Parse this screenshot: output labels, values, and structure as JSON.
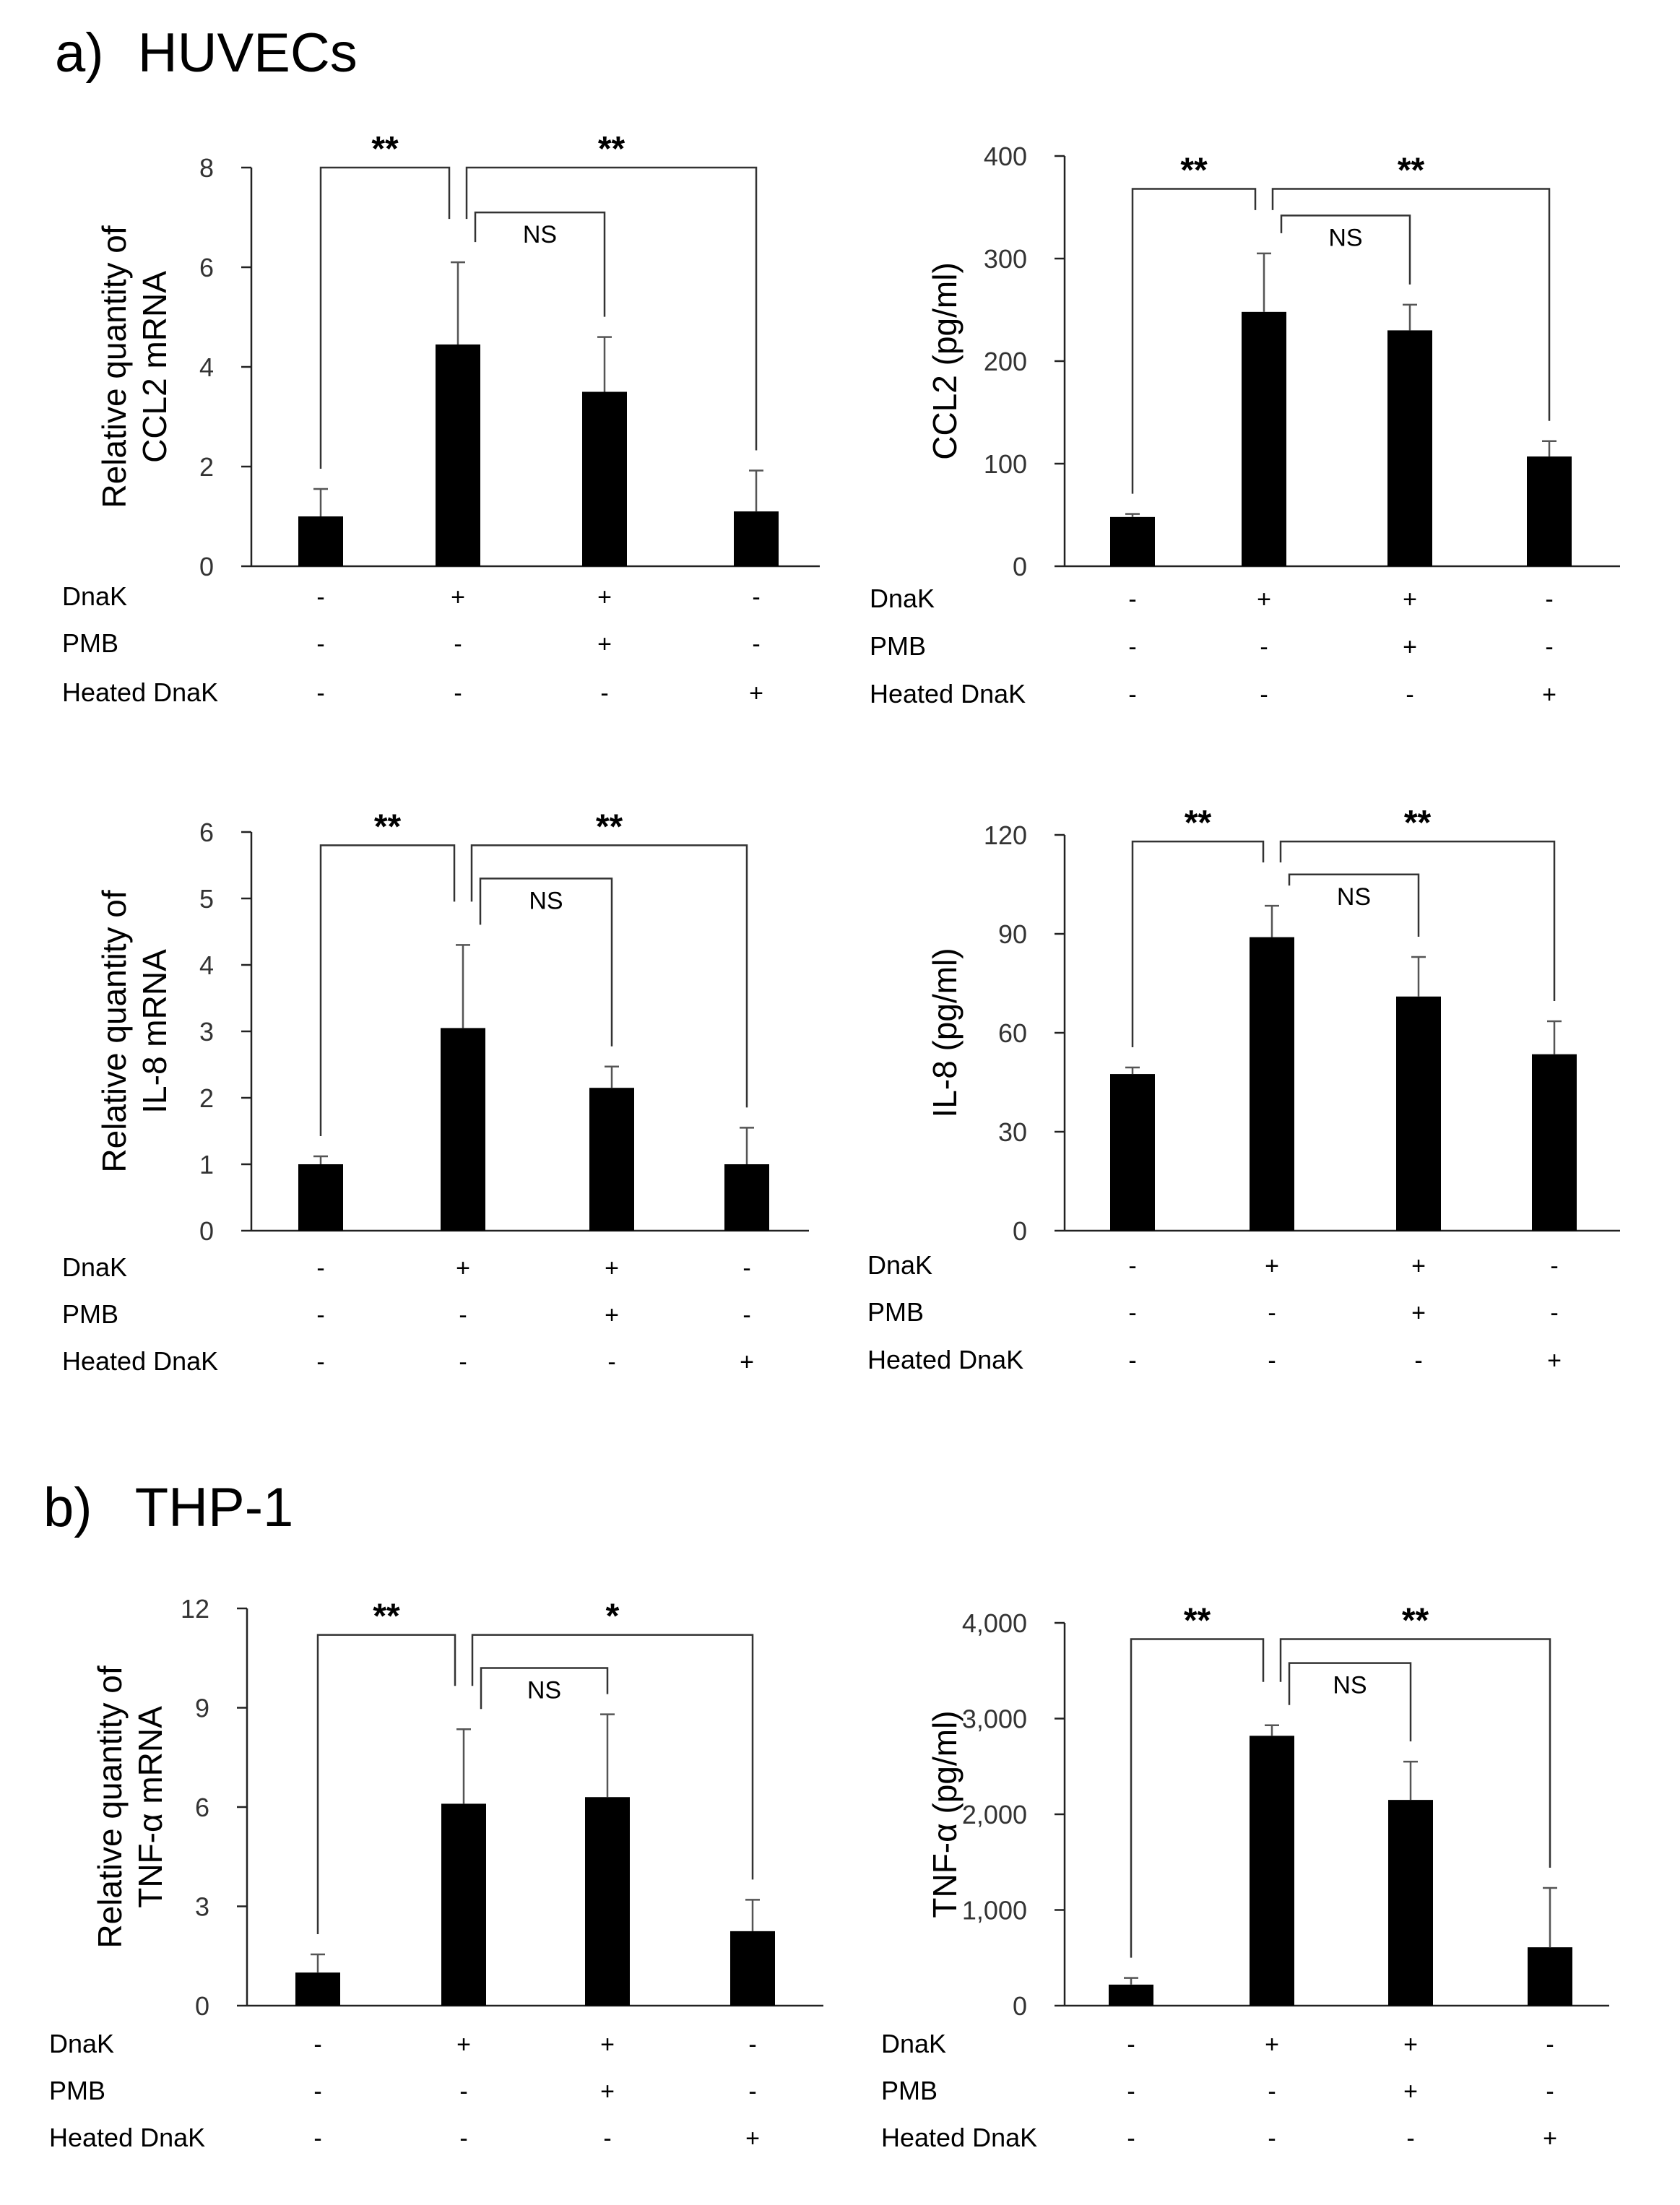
{
  "sections": {
    "a_label": "a)",
    "a_title": "HUVECs",
    "b_label": "b)",
    "b_title": "THP-1"
  },
  "condition_labels": [
    "DnaK",
    "PMB",
    "Heated DnaK"
  ],
  "conditions": [
    [
      "-",
      "+",
      "+",
      "-"
    ],
    [
      "-",
      "-",
      "+",
      "-"
    ],
    [
      "-",
      "-",
      "-",
      "+"
    ]
  ],
  "chart_data": [
    {
      "id": "ccl2-mrna",
      "type": "bar",
      "ylabel": [
        "Relative quantity of",
        "CCL2 mRNA"
      ],
      "ylim": [
        0,
        8
      ],
      "ticks": [
        0,
        2,
        4,
        6,
        8
      ],
      "tick_labels": [
        "0",
        "2",
        "4",
        "6",
        "8"
      ],
      "values": [
        1.0,
        4.45,
        3.5,
        1.1
      ],
      "errors": [
        0.55,
        1.65,
        1.1,
        0.82
      ],
      "significance": [
        {
          "from": 0,
          "to": 1,
          "label": "**",
          "level": 8.0
        },
        {
          "from": 1,
          "to": 3,
          "label": "**",
          "level": 8.0
        },
        {
          "from": 1,
          "to": 2,
          "label": "NS",
          "level": 7.1
        }
      ]
    },
    {
      "id": "ccl2-protein",
      "type": "bar",
      "ylabel": [
        "CCL2 (pg/ml)"
      ],
      "ylim": [
        0,
        400
      ],
      "ticks": [
        0,
        100,
        200,
        300,
        400
      ],
      "tick_labels": [
        "0",
        "100",
        "200",
        "300",
        "400"
      ],
      "values": [
        48,
        248,
        230,
        107
      ],
      "errors": [
        3,
        57,
        25,
        15
      ],
      "significance": [
        {
          "from": 0,
          "to": 1,
          "label": "**",
          "level": 368
        },
        {
          "from": 1,
          "to": 3,
          "label": "**",
          "level": 368
        },
        {
          "from": 1,
          "to": 2,
          "label": "NS",
          "level": 342
        }
      ]
    },
    {
      "id": "il8-mrna",
      "type": "bar",
      "ylabel": [
        "Relative quantity of",
        "IL-8 mRNA"
      ],
      "ylim": [
        0,
        6
      ],
      "ticks": [
        0,
        1,
        2,
        3,
        4,
        5,
        6
      ],
      "tick_labels": [
        "0",
        "1",
        "2",
        "3",
        "4",
        "5",
        "6"
      ],
      "values": [
        1.0,
        3.05,
        2.15,
        1.0
      ],
      "errors": [
        0.12,
        1.25,
        0.32,
        0.55
      ],
      "significance": [
        {
          "from": 0,
          "to": 1,
          "label": "**",
          "level": 5.8
        },
        {
          "from": 1,
          "to": 3,
          "label": "**",
          "level": 5.8
        },
        {
          "from": 1,
          "to": 2,
          "label": "NS",
          "level": 5.3
        }
      ]
    },
    {
      "id": "il8-protein",
      "type": "bar",
      "ylabel": [
        "IL-8 (pg/ml)"
      ],
      "ylim": [
        0,
        120
      ],
      "ticks": [
        0,
        30,
        60,
        90,
        120
      ],
      "tick_labels": [
        "0",
        "30",
        "60",
        "90",
        "120"
      ],
      "values": [
        47.5,
        89,
        71,
        53.5
      ],
      "errors": [
        2,
        9.5,
        12,
        10
      ],
      "significance": [
        {
          "from": 0,
          "to": 1,
          "label": "**",
          "level": 118
        },
        {
          "from": 1,
          "to": 3,
          "label": "**",
          "level": 118
        },
        {
          "from": 1,
          "to": 2,
          "label": "NS",
          "level": 108
        }
      ]
    },
    {
      "id": "tnfa-mrna",
      "type": "bar",
      "ylabel": [
        "Relative quantity of",
        "TNF-α mRNA"
      ],
      "ylim": [
        0,
        12
      ],
      "ticks": [
        0,
        3,
        6,
        9,
        12
      ],
      "tick_labels": [
        "0",
        "3",
        "6",
        "9",
        "12"
      ],
      "values": [
        1.0,
        6.1,
        6.3,
        2.25
      ],
      "errors": [
        0.55,
        2.25,
        2.5,
        0.95
      ],
      "significance": [
        {
          "from": 0,
          "to": 1,
          "label": "**",
          "level": 11.2
        },
        {
          "from": 1,
          "to": 3,
          "label": "*",
          "level": 11.2
        },
        {
          "from": 1,
          "to": 2,
          "label": "NS",
          "level": 10.2
        }
      ]
    },
    {
      "id": "tnfa-protein",
      "type": "bar",
      "ylabel": [
        "TNF-α (pg/ml)"
      ],
      "ylim": [
        0,
        4000
      ],
      "ticks": [
        0,
        1000,
        2000,
        3000,
        4000
      ],
      "tick_labels": [
        "0",
        "1,000",
        "2,000",
        "3,000",
        "4,000"
      ],
      "values": [
        220,
        2820,
        2150,
        610
      ],
      "errors": [
        70,
        110,
        400,
        620
      ],
      "significance": [
        {
          "from": 0,
          "to": 1,
          "label": "**",
          "level": 3830
        },
        {
          "from": 1,
          "to": 3,
          "label": "**",
          "level": 3830
        },
        {
          "from": 1,
          "to": 2,
          "label": "NS",
          "level": 3580
        }
      ]
    }
  ]
}
